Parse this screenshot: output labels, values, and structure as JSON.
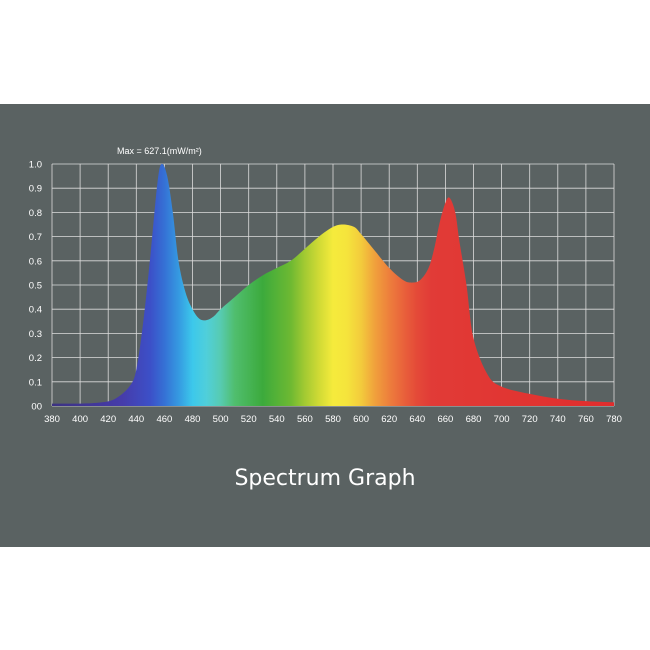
{
  "caption": "Spectrum Graph",
  "colors": {
    "panel_background": "#5a6262",
    "grid": "#dcdcdc",
    "text": "#ffffff"
  },
  "chart_data": {
    "type": "area",
    "title": "",
    "annotation": "Max = 627.1(mW/m²)",
    "xlabel": "",
    "ylabel": "",
    "xlim": [
      380,
      780
    ],
    "ylim": [
      0,
      1.0
    ],
    "grid": true,
    "x_ticks": [
      380,
      400,
      420,
      440,
      460,
      480,
      500,
      520,
      540,
      560,
      580,
      600,
      620,
      640,
      660,
      680,
      700,
      720,
      740,
      760,
      780
    ],
    "y_ticks": [
      "00",
      "0.1",
      "0.2",
      "0.3",
      "0.4",
      "0.5",
      "0.6",
      "0.7",
      "0.8",
      "0.9",
      "1.0"
    ],
    "y_tick_values": [
      0,
      0.1,
      0.2,
      0.3,
      0.4,
      0.5,
      0.6,
      0.7,
      0.8,
      0.9,
      1.0
    ],
    "fill": "visible-spectrum color gradient",
    "series": [
      {
        "x": [
          380,
          400,
          415,
          425,
          435,
          440,
          445,
          450,
          455,
          458,
          462,
          466,
          470,
          475,
          480,
          485,
          490,
          495,
          500,
          510,
          520,
          530,
          540,
          550,
          560,
          570,
          580,
          587,
          595,
          600,
          610,
          620,
          630,
          636,
          642,
          648,
          652,
          656,
          660,
          663,
          667,
          670,
          675,
          680,
          690,
          700,
          720,
          740,
          760,
          780
        ],
        "y": [
          0.01,
          0.01,
          0.015,
          0.03,
          0.08,
          0.15,
          0.35,
          0.62,
          0.92,
          1.0,
          0.95,
          0.8,
          0.6,
          0.47,
          0.4,
          0.36,
          0.355,
          0.37,
          0.4,
          0.45,
          0.5,
          0.54,
          0.57,
          0.6,
          0.65,
          0.7,
          0.74,
          0.75,
          0.74,
          0.71,
          0.64,
          0.57,
          0.52,
          0.51,
          0.52,
          0.57,
          0.65,
          0.76,
          0.84,
          0.86,
          0.8,
          0.68,
          0.5,
          0.28,
          0.13,
          0.08,
          0.05,
          0.03,
          0.02,
          0.015
        ]
      }
    ]
  }
}
